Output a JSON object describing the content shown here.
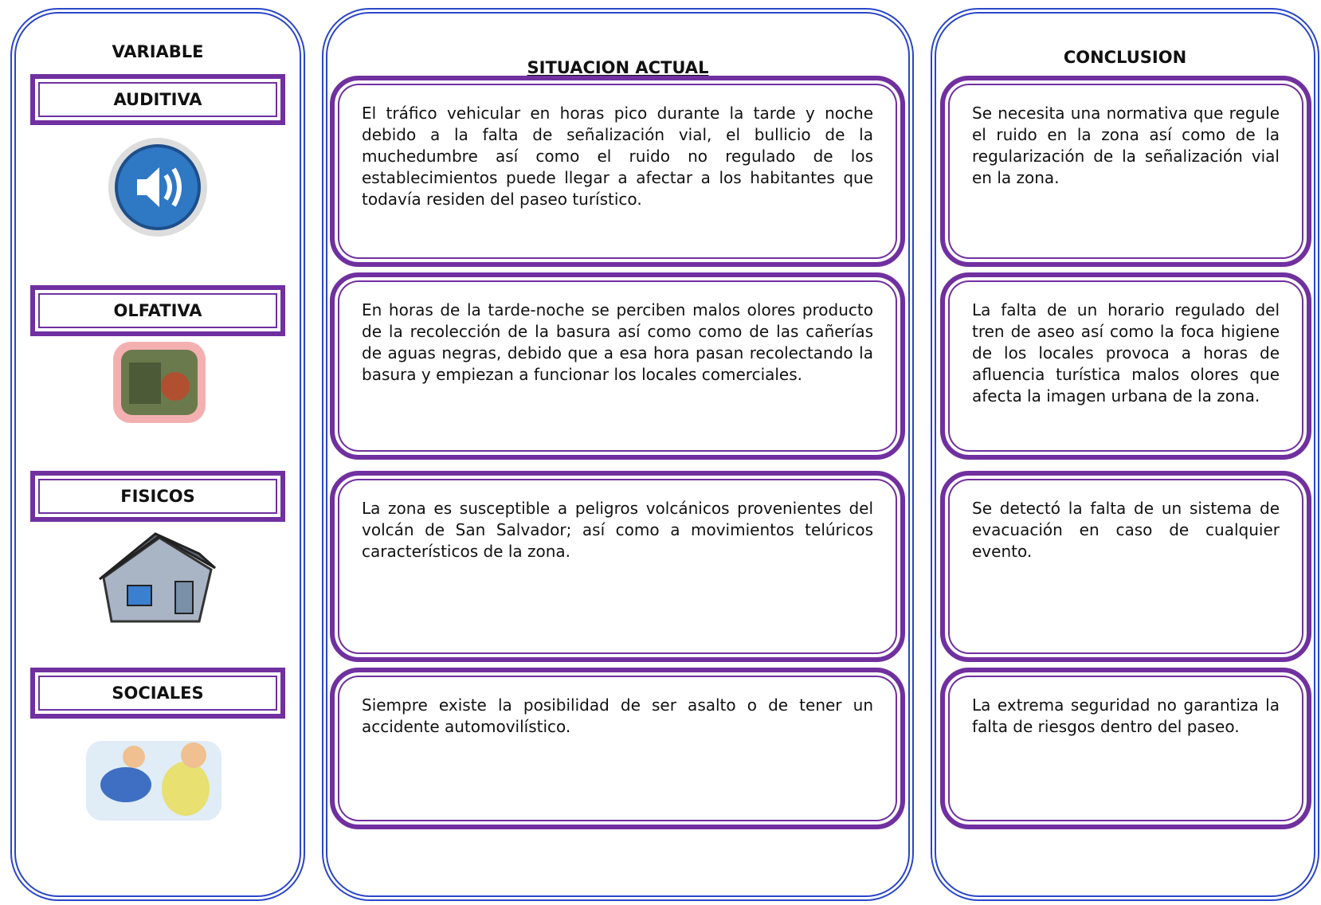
{
  "variable": {
    "header": "VARIABLE",
    "items": [
      "AUDITIVA",
      "OLFATIVA",
      "FISICOS",
      "SOCIALES"
    ]
  },
  "situacion": {
    "header": "SITUACION ACTUAL",
    "items": [
      "El tráfico vehicular en horas pico durante la tarde y noche debido a la falta de señalización vial, el bullicio de la muchedumbre así como el ruido no regulado de los establecimientos puede llegar a afectar a los habitantes que todavía residen del paseo turístico.",
      "En horas de la tarde-noche se perciben malos olores producto de la recolección de la basura así como como de las cañerías de aguas negras, debido que a esa hora pasan recolectando la basura y empiezan a funcionar los locales comerciales.",
      "La zona es susceptible a peligros volcánicos provenientes del volcán de San Salvador; así como a movimientos telúricos característicos de la zona.",
      "Siempre existe la posibilidad de ser asalto o de tener un accidente automovilístico."
    ]
  },
  "conclusion": {
    "header": "CONCLUSION",
    "items": [
      "Se necesita una normativa que regule el ruido en la zona así como de la regularización de la señalización vial en la zona.",
      "La falta de un horario regulado del tren de aseo así como la foca higiene de los locales provoca a horas de afluencia turística malos olores que afecta la imagen urbana de la zona.",
      "Se detectó la falta de un sistema de evacuación en caso de cualquier evento.",
      "La extrema seguridad no garantiza la falta de riesgos dentro del paseo."
    ]
  }
}
